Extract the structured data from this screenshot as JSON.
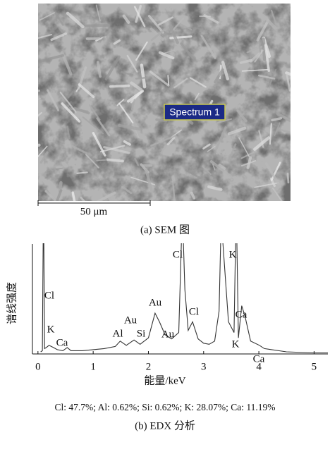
{
  "sem": {
    "label": "Spectrum 1",
    "scale_bar": "50 μm",
    "caption": "(a)  SEM 图"
  },
  "chart_data": {
    "type": "line",
    "xlabel": "能量/keV",
    "ylabel": "谱线强度",
    "x": [
      0.05,
      0.08,
      0.1,
      0.12,
      0.15,
      0.2,
      0.28,
      0.35,
      0.45,
      0.53,
      0.6,
      0.8,
      1.0,
      1.2,
      1.4,
      1.49,
      1.6,
      1.74,
      1.85,
      2.0,
      2.12,
      2.2,
      2.3,
      2.42,
      2.55,
      2.6,
      2.63,
      2.66,
      2.72,
      2.8,
      2.9,
      3.0,
      3.1,
      3.2,
      3.28,
      3.31,
      3.34,
      3.45,
      3.55,
      3.58,
      3.6,
      3.63,
      3.69,
      3.75,
      3.85,
      4.01,
      4.1,
      4.5,
      5.0,
      5.25
    ],
    "series": [
      {
        "color": "#333333",
        "values": [
          2,
          3,
          150,
          5,
          6,
          8,
          6,
          4,
          3,
          6,
          3,
          3,
          4,
          5,
          7,
          12,
          8,
          13,
          9,
          15,
          38,
          30,
          18,
          14,
          20,
          110,
          110,
          60,
          22,
          30,
          14,
          10,
          9,
          12,
          40,
          110,
          110,
          30,
          20,
          110,
          110,
          15,
          45,
          35,
          12,
          8,
          5,
          2,
          1,
          1
        ]
      }
    ],
    "xlim": [
      -0.1,
      5.25
    ],
    "ylim": [
      0,
      100
    ],
    "xticks": [
      0,
      1,
      2,
      3,
      4,
      5
    ],
    "annotations": [
      "Cl",
      "K",
      "Ca",
      "Al",
      "Au",
      "Si",
      "Au",
      "Au",
      "Cl",
      "Cl",
      "K",
      "K",
      "Ca",
      "Ca"
    ]
  },
  "composition": "Cl: 47.7%; Al: 0.62%; Si: 0.62%; K: 28.07%; Ca: 11.19%",
  "caption": "(b)  EDX 分析"
}
